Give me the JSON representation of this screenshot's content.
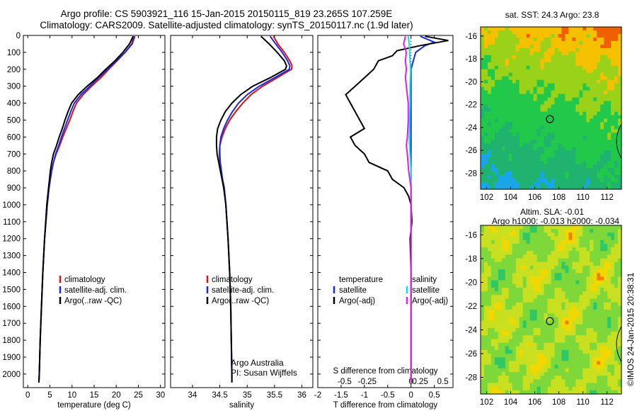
{
  "header": {
    "line1": "Argo profile: CS 5903921_116 15-Jan-2015 20150115_819 23.265S 107.259E",
    "line2": "Climatology: CARS2009. Satellite-adjusted climatology: synTS_20150117.nc (1.9d later)"
  },
  "colors": {
    "climatology": "#e01010",
    "satellite": "#1a28e0",
    "argo": "#000000",
    "sat_sal": "#00e0ee",
    "argo_sal": "#e020e0"
  },
  "chart_data": [
    {
      "type": "line",
      "id": "temperature",
      "xlabel": "temperature (deg C)",
      "ylabel": "",
      "xlim": [
        -1,
        31
      ],
      "ylim": [
        2080,
        0
      ],
      "xticks": [
        0,
        5,
        10,
        15,
        20,
        25,
        30
      ],
      "yticks": [
        0,
        100,
        200,
        300,
        400,
        500,
        600,
        700,
        800,
        900,
        1000,
        1100,
        1200,
        1300,
        1400,
        1500,
        1600,
        1700,
        1800,
        1900,
        2000
      ],
      "legend": [
        "climatology",
        "satellite-adj. clim.",
        "Argo(..raw -QC)"
      ],
      "series": [
        {
          "name": "climatology",
          "depth": [
            5,
            50,
            100,
            150,
            200,
            250,
            300,
            350,
            400,
            450,
            500,
            550,
            600,
            650,
            700,
            750,
            800,
            850,
            900,
            1000,
            1200,
            1400,
            1600,
            1800,
            2000,
            2050
          ],
          "values": [
            24.0,
            23.5,
            22.0,
            20.2,
            18.3,
            16.5,
            14.4,
            12.5,
            11.0,
            10.2,
            9.5,
            8.7,
            7.9,
            7.2,
            6.4,
            5.8,
            5.4,
            5.1,
            4.8,
            4.4,
            3.8,
            3.4,
            3.1,
            2.8,
            2.6,
            2.5
          ]
        },
        {
          "name": "satellite-adj. clim.",
          "depth": [
            5,
            50,
            100,
            150,
            200,
            250,
            300,
            350,
            400,
            450,
            500,
            550,
            600,
            650,
            700,
            750,
            800,
            850,
            900,
            1000,
            1200,
            1400,
            1600,
            1800,
            2000,
            2050
          ],
          "values": [
            24.2,
            23.6,
            22.0,
            20.0,
            18.0,
            16.0,
            14.0,
            12.0,
            10.5,
            9.7,
            9.0,
            8.3,
            7.6,
            7.0,
            6.3,
            5.8,
            5.4,
            5.1,
            4.8,
            4.4,
            3.8,
            3.4,
            3.1,
            2.8,
            2.6,
            2.5
          ]
        },
        {
          "name": "Argo(..raw -QC)",
          "depth": [
            5,
            50,
            100,
            150,
            200,
            250,
            300,
            350,
            400,
            450,
            500,
            550,
            600,
            650,
            700,
            750,
            800,
            850,
            900,
            1000,
            1200,
            1400,
            1600,
            1800,
            2000,
            2050
          ],
          "values": [
            23.8,
            23.0,
            21.5,
            19.7,
            17.6,
            15.7,
            13.4,
            11.4,
            9.9,
            9.1,
            8.4,
            7.8,
            7.1,
            6.5,
            5.8,
            5.4,
            5.1,
            4.9,
            4.7,
            4.3,
            3.8,
            3.4,
            3.1,
            2.8,
            2.6,
            2.5
          ]
        }
      ]
    },
    {
      "type": "line",
      "id": "salinity",
      "xlabel": "salinity",
      "ylabel": "",
      "xlim": [
        33.6,
        36.2
      ],
      "ylim": [
        2080,
        0
      ],
      "xticks": [
        34,
        34.5,
        35,
        35.5,
        36
      ],
      "legend": [
        "climatology",
        "satellite-adj. clim.",
        "Argo(..raw -QC)"
      ],
      "annotation": [
        "Argo Australia",
        "PI: Susan Wijffels"
      ],
      "series": [
        {
          "name": "climatology",
          "depth": [
            5,
            50,
            100,
            150,
            180,
            200,
            250,
            300,
            350,
            400,
            450,
            500,
            550,
            600,
            650,
            700,
            750,
            800,
            850,
            900,
            1000,
            1200,
            1400,
            1600,
            1800,
            2000,
            2050
          ],
          "values": [
            35.48,
            35.56,
            35.68,
            35.78,
            35.82,
            35.81,
            35.55,
            35.28,
            35.07,
            34.92,
            34.79,
            34.68,
            34.6,
            34.54,
            34.5,
            34.49,
            34.5,
            34.52,
            34.55,
            34.58,
            34.61,
            34.65,
            34.68,
            34.7,
            34.71,
            34.72,
            34.72
          ]
        },
        {
          "name": "satellite-adj. clim.",
          "depth": [
            5,
            50,
            100,
            150,
            180,
            200,
            250,
            300,
            350,
            400,
            450,
            500,
            550,
            600,
            650,
            700,
            750,
            800,
            850,
            900,
            1000,
            1200,
            1400,
            1600,
            1800,
            2000,
            2050
          ],
          "values": [
            35.42,
            35.52,
            35.64,
            35.74,
            35.78,
            35.77,
            35.5,
            35.22,
            35.0,
            34.84,
            34.73,
            34.64,
            34.57,
            34.52,
            34.5,
            34.5,
            34.51,
            34.53,
            34.55,
            34.58,
            34.61,
            34.65,
            34.68,
            34.7,
            34.71,
            34.72,
            34.72
          ]
        },
        {
          "name": "Argo(..raw -QC)",
          "depth": [
            5,
            50,
            100,
            150,
            180,
            200,
            250,
            300,
            350,
            400,
            450,
            500,
            550,
            600,
            650,
            700,
            750,
            800,
            850,
            900,
            1000,
            1200,
            1400,
            1600,
            1800,
            2000,
            2050
          ],
          "values": [
            35.25,
            35.4,
            35.55,
            35.68,
            35.72,
            35.7,
            35.42,
            35.1,
            34.88,
            34.72,
            34.6,
            34.52,
            34.46,
            34.44,
            34.44,
            34.45,
            34.48,
            34.51,
            34.54,
            34.57,
            34.61,
            34.65,
            34.68,
            34.7,
            34.71,
            34.72,
            34.72
          ]
        }
      ]
    },
    {
      "type": "line",
      "id": "difference",
      "xlabel": "T difference from climatology",
      "xlabel_top": "S difference from climatology",
      "xlim": [
        -2.0,
        0.9
      ],
      "ylim": [
        2080,
        0
      ],
      "xticks_labels": [
        "-2",
        "-1.5",
        "-1",
        "-0.5",
        "0",
        "0.5"
      ],
      "xticks": [
        -2,
        -1.5,
        -1,
        -0.5,
        0,
        0.5
      ],
      "xticks_top_labels": [
        "-0.5",
        "-0.25",
        "0",
        "0.25",
        "0.5"
      ],
      "legend_temperature": [
        "temperature",
        "satellite",
        "Argo(-adj)"
      ],
      "legend_salinity": [
        "salinity",
        "satellite",
        "Argo(-adj)"
      ],
      "series": [
        {
          "name": "temperature satellite",
          "depth": [
            5,
            40,
            60,
            100,
            150,
            200,
            300,
            400,
            600,
            800,
            1000,
            1500,
            2050
          ],
          "values": [
            0.2,
            0.5,
            0.3,
            0.1,
            0.05,
            0.0,
            0.0,
            0.0,
            0.0,
            0.0,
            0.0,
            0.0,
            0.0
          ]
        },
        {
          "name": "temperature Argo(-adj)",
          "depth": [
            5,
            30,
            60,
            90,
            120,
            150,
            200,
            250,
            300,
            350,
            400,
            450,
            500,
            550,
            600,
            650,
            700,
            750,
            800,
            850,
            900,
            950,
            1000,
            1100,
            1200,
            1400,
            1600,
            1800,
            2000,
            2050
          ],
          "values": [
            0.3,
            0.8,
            0.2,
            -0.3,
            -0.4,
            -0.7,
            -0.8,
            -1.0,
            -1.2,
            -1.4,
            -1.3,
            -1.2,
            -1.1,
            -1.0,
            -1.3,
            -1.2,
            -1.0,
            -0.9,
            -0.5,
            -0.4,
            -0.15,
            -0.05,
            0.0,
            0.02,
            -0.02,
            0.0,
            0.0,
            0.0,
            0.0,
            0.0
          ]
        },
        {
          "name": "salinity satellite",
          "depth": [
            5,
            50,
            100,
            150,
            200,
            300,
            400,
            500,
            600,
            700,
            800,
            900,
            1000,
            1500,
            2050
          ],
          "values": [
            -0.06,
            -0.04,
            -0.03,
            -0.02,
            -0.01,
            -0.02,
            -0.02,
            -0.03,
            -0.04,
            -0.02,
            0.0,
            0.0,
            0.0,
            0.0,
            0.0
          ]
        },
        {
          "name": "salinity Argo(-adj)",
          "depth": [
            5,
            50,
            100,
            150,
            200,
            250,
            300,
            400,
            500,
            600,
            650,
            700,
            800,
            900,
            1000,
            1500,
            1800,
            2050
          ],
          "values": [
            -0.12,
            -0.16,
            -0.1,
            -0.12,
            -0.1,
            -0.12,
            -0.1,
            -0.06,
            -0.06,
            -0.08,
            -0.1,
            -0.08,
            -0.05,
            0.0,
            0.0,
            0.0,
            0.0,
            0.0
          ]
        }
      ]
    },
    {
      "type": "heatmap",
      "id": "sst_map",
      "title": "sat. SST: 24.3  Argo: 23.8",
      "xlim": [
        101.5,
        113.2
      ],
      "ylim": [
        -29.4,
        -15.2
      ],
      "xticks": [
        102,
        104,
        106,
        108,
        110,
        112
      ],
      "yticks": [
        -16,
        -18,
        -20,
        -22,
        -24,
        -26,
        -28
      ],
      "marker": {
        "lon": 107.259,
        "lat": -23.265
      }
    },
    {
      "type": "heatmap",
      "id": "sla_map",
      "title": "Altim. SLA: -0.01",
      "subtitle": "Argo h1000: -0.013  h2000: -0.034",
      "xlim": [
        101.5,
        113.2
      ],
      "ylim": [
        -29.4,
        -15.2
      ],
      "xticks": [
        102,
        104,
        106,
        108,
        110,
        112
      ],
      "yticks": [
        -16,
        -18,
        -20,
        -22,
        -24,
        -26,
        -28
      ],
      "marker": {
        "lon": 107.259,
        "lat": -23.265
      }
    }
  ],
  "footer": {
    "credit": "©IMOS 24-Jan-2015 20:38:31"
  }
}
